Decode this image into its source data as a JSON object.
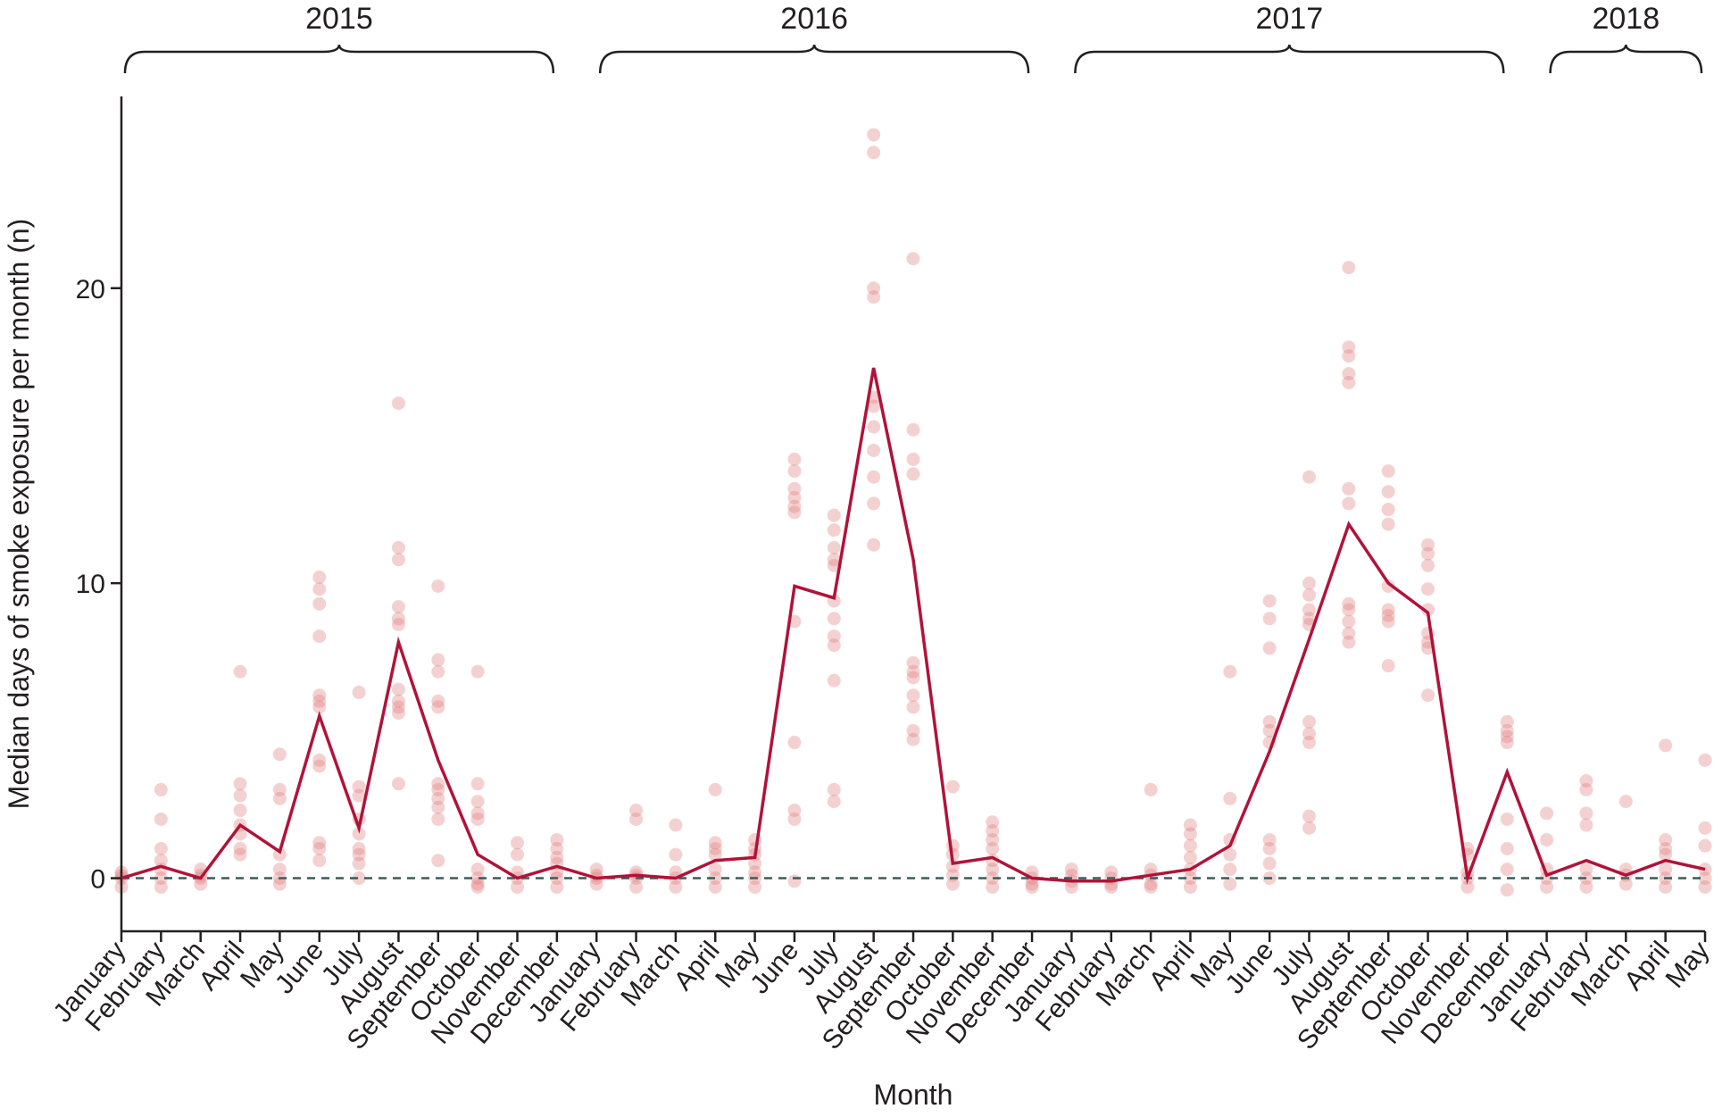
{
  "chart_data": {
    "type": "line",
    "title": "",
    "xlabel": "Month",
    "ylabel": "Median days of smoke exposure per month (n)",
    "ylim": [
      -1.8,
      26.5
    ],
    "yticks": [
      0,
      10,
      20
    ],
    "years": [
      {
        "label": "2015",
        "start": 0,
        "end": 11
      },
      {
        "label": "2016",
        "start": 12,
        "end": 23
      },
      {
        "label": "2017",
        "start": 24,
        "end": 35
      },
      {
        "label": "2018",
        "start": 36,
        "end": 40
      }
    ],
    "categories": [
      "January",
      "February",
      "March",
      "April",
      "May",
      "June",
      "July",
      "August",
      "September",
      "October",
      "November",
      "December",
      "January",
      "February",
      "March",
      "April",
      "May",
      "June",
      "July",
      "August",
      "September",
      "October",
      "November",
      "December",
      "January",
      "February",
      "March",
      "April",
      "May",
      "June",
      "July",
      "August",
      "September",
      "October",
      "November",
      "December",
      "January",
      "February",
      "March",
      "April",
      "May"
    ],
    "reference_line": {
      "y": 0,
      "style": "dashed",
      "color": "#3d5a5a"
    },
    "series": [
      {
        "color": "#b0133a",
        "values": [
          0,
          0.4,
          0,
          1.8,
          0.9,
          5.5,
          1.7,
          8.0,
          4.0,
          0.8,
          0,
          0.4,
          0,
          0.1,
          0,
          0.6,
          0.7,
          9.9,
          9.5,
          17.3,
          10.8,
          0.5,
          0.7,
          0,
          -0.1,
          -0.1,
          0.1,
          0.3,
          1.1,
          4.3,
          8.1,
          12.0,
          10.0,
          9.0,
          0,
          3.6,
          0.1,
          0.6,
          0.1,
          0.6,
          0.3
        ]
      }
    ],
    "scatter": {
      "color": "#e07b7b",
      "points": [
        [
          0,
          0
        ],
        [
          0,
          -0.3
        ],
        [
          0,
          0.2
        ],
        [
          0,
          0.1
        ],
        [
          1,
          3.0
        ],
        [
          1,
          2.0
        ],
        [
          1,
          1.0
        ],
        [
          1,
          0.6
        ],
        [
          1,
          0.3
        ],
        [
          1,
          0
        ],
        [
          1,
          -0.3
        ],
        [
          2,
          0.3
        ],
        [
          2,
          0
        ],
        [
          2,
          -0.2
        ],
        [
          2,
          0.1
        ],
        [
          3,
          7.0
        ],
        [
          3,
          3.2
        ],
        [
          3,
          2.8
        ],
        [
          3,
          2.3
        ],
        [
          3,
          1.8
        ],
        [
          3,
          1.5
        ],
        [
          3,
          1.0
        ],
        [
          3,
          0.8
        ],
        [
          4,
          4.2
        ],
        [
          4,
          3.0
        ],
        [
          4,
          2.7
        ],
        [
          4,
          0.8
        ],
        [
          4,
          0.3
        ],
        [
          4,
          0
        ],
        [
          4,
          -0.2
        ],
        [
          5,
          10.2
        ],
        [
          5,
          9.8
        ],
        [
          5,
          9.3
        ],
        [
          5,
          8.2
        ],
        [
          5,
          6.2
        ],
        [
          5,
          6.0
        ],
        [
          5,
          5.8
        ],
        [
          5,
          4.0
        ],
        [
          5,
          3.8
        ],
        [
          5,
          1.2
        ],
        [
          5,
          1.0
        ],
        [
          5,
          0.6
        ],
        [
          6,
          6.3
        ],
        [
          6,
          3.1
        ],
        [
          6,
          2.8
        ],
        [
          6,
          2.0
        ],
        [
          6,
          1.5
        ],
        [
          6,
          1.0
        ],
        [
          6,
          0.8
        ],
        [
          6,
          0.5
        ],
        [
          6,
          0
        ],
        [
          7,
          16.1
        ],
        [
          7,
          11.2
        ],
        [
          7,
          10.8
        ],
        [
          7,
          9.2
        ],
        [
          7,
          8.8
        ],
        [
          7,
          8.6
        ],
        [
          7,
          6.4
        ],
        [
          7,
          6.0
        ],
        [
          7,
          5.8
        ],
        [
          7,
          5.6
        ],
        [
          7,
          3.2
        ],
        [
          8,
          9.9
        ],
        [
          8,
          7.4
        ],
        [
          8,
          7.0
        ],
        [
          8,
          6.0
        ],
        [
          8,
          5.8
        ],
        [
          8,
          3.2
        ],
        [
          8,
          3.0
        ],
        [
          8,
          2.7
        ],
        [
          8,
          2.4
        ],
        [
          8,
          2.0
        ],
        [
          8,
          0.6
        ],
        [
          9,
          7.0
        ],
        [
          9,
          3.2
        ],
        [
          9,
          2.6
        ],
        [
          9,
          2.2
        ],
        [
          9,
          2.0
        ],
        [
          9,
          0.3
        ],
        [
          9,
          0
        ],
        [
          9,
          -0.2
        ],
        [
          9,
          -0.3
        ],
        [
          10,
          1.2
        ],
        [
          10,
          0.8
        ],
        [
          10,
          0.2
        ],
        [
          10,
          0
        ],
        [
          10,
          -0.3
        ],
        [
          11,
          1.3
        ],
        [
          11,
          1.0
        ],
        [
          11,
          0.7
        ],
        [
          11,
          0.5
        ],
        [
          11,
          0.2
        ],
        [
          11,
          0
        ],
        [
          11,
          -0.3
        ],
        [
          12,
          0.3
        ],
        [
          12,
          0
        ],
        [
          12,
          -0.2
        ],
        [
          12,
          0.1
        ],
        [
          13,
          2.3
        ],
        [
          13,
          2.0
        ],
        [
          13,
          0.2
        ],
        [
          13,
          0
        ],
        [
          13,
          -0.3
        ],
        [
          13,
          0.1
        ],
        [
          14,
          1.8
        ],
        [
          14,
          0.8
        ],
        [
          14,
          0.2
        ],
        [
          14,
          0
        ],
        [
          14,
          -0.3
        ],
        [
          15,
          3.0
        ],
        [
          15,
          1.2
        ],
        [
          15,
          1.0
        ],
        [
          15,
          0.8
        ],
        [
          15,
          0.3
        ],
        [
          15,
          0
        ],
        [
          15,
          -0.3
        ],
        [
          16,
          1.3
        ],
        [
          16,
          1.0
        ],
        [
          16,
          0.8
        ],
        [
          16,
          0.5
        ],
        [
          16,
          0.2
        ],
        [
          16,
          0
        ],
        [
          16,
          -0.3
        ],
        [
          17,
          14.2
        ],
        [
          17,
          13.8
        ],
        [
          17,
          13.2
        ],
        [
          17,
          12.9
        ],
        [
          17,
          12.6
        ],
        [
          17,
          12.4
        ],
        [
          17,
          8.7
        ],
        [
          17,
          4.6
        ],
        [
          17,
          2.3
        ],
        [
          17,
          2.0
        ],
        [
          17,
          -0.1
        ],
        [
          18,
          12.3
        ],
        [
          18,
          11.8
        ],
        [
          18,
          11.2
        ],
        [
          18,
          10.8
        ],
        [
          18,
          10.6
        ],
        [
          18,
          9.4
        ],
        [
          18,
          8.8
        ],
        [
          18,
          8.2
        ],
        [
          18,
          7.9
        ],
        [
          18,
          6.7
        ],
        [
          18,
          3.0
        ],
        [
          18,
          2.6
        ],
        [
          19,
          25.2
        ],
        [
          19,
          24.6
        ],
        [
          19,
          20.0
        ],
        [
          19,
          19.7
        ],
        [
          19,
          16.3
        ],
        [
          19,
          16.0
        ],
        [
          19,
          15.3
        ],
        [
          19,
          14.5
        ],
        [
          19,
          13.6
        ],
        [
          19,
          12.7
        ],
        [
          19,
          11.3
        ],
        [
          20,
          21.0
        ],
        [
          20,
          15.2
        ],
        [
          20,
          14.2
        ],
        [
          20,
          13.7
        ],
        [
          20,
          7.3
        ],
        [
          20,
          7.0
        ],
        [
          20,
          6.8
        ],
        [
          20,
          6.2
        ],
        [
          20,
          5.8
        ],
        [
          20,
          5.0
        ],
        [
          20,
          4.7
        ],
        [
          21,
          3.1
        ],
        [
          21,
          1.1
        ],
        [
          21,
          0.8
        ],
        [
          21,
          0.4
        ],
        [
          21,
          0.1
        ],
        [
          21,
          -0.2
        ],
        [
          22,
          1.9
        ],
        [
          22,
          1.6
        ],
        [
          22,
          1.3
        ],
        [
          22,
          1.0
        ],
        [
          22,
          0.6
        ],
        [
          22,
          0.3
        ],
        [
          22,
          0
        ],
        [
          22,
          -0.3
        ],
        [
          23,
          0.2
        ],
        [
          23,
          0
        ],
        [
          23,
          -0.2
        ],
        [
          23,
          -0.3
        ],
        [
          24,
          0.3
        ],
        [
          24,
          0.1
        ],
        [
          24,
          -0.1
        ],
        [
          24,
          -0.3
        ],
        [
          25,
          0.2
        ],
        [
          25,
          0
        ],
        [
          25,
          -0.2
        ],
        [
          25,
          -0.3
        ],
        [
          26,
          3.0
        ],
        [
          26,
          0.3
        ],
        [
          26,
          0.1
        ],
        [
          26,
          -0.2
        ],
        [
          26,
          -0.3
        ],
        [
          27,
          1.8
        ],
        [
          27,
          1.5
        ],
        [
          27,
          1.1
        ],
        [
          27,
          0.7
        ],
        [
          27,
          0.3
        ],
        [
          27,
          0
        ],
        [
          27,
          -0.3
        ],
        [
          28,
          7.0
        ],
        [
          28,
          2.7
        ],
        [
          28,
          1.3
        ],
        [
          28,
          0.8
        ],
        [
          28,
          0.3
        ],
        [
          28,
          -0.2
        ],
        [
          29,
          9.4
        ],
        [
          29,
          8.8
        ],
        [
          29,
          7.8
        ],
        [
          29,
          5.3
        ],
        [
          29,
          5.0
        ],
        [
          29,
          4.6
        ],
        [
          29,
          1.3
        ],
        [
          29,
          1.0
        ],
        [
          29,
          0.5
        ],
        [
          29,
          0
        ],
        [
          30,
          13.6
        ],
        [
          30,
          10.0
        ],
        [
          30,
          9.6
        ],
        [
          30,
          9.1
        ],
        [
          30,
          8.8
        ],
        [
          30,
          8.6
        ],
        [
          30,
          5.3
        ],
        [
          30,
          4.9
        ],
        [
          30,
          4.6
        ],
        [
          30,
          2.1
        ],
        [
          30,
          1.7
        ],
        [
          31,
          20.7
        ],
        [
          31,
          18.0
        ],
        [
          31,
          17.7
        ],
        [
          31,
          17.1
        ],
        [
          31,
          16.8
        ],
        [
          31,
          13.2
        ],
        [
          31,
          12.7
        ],
        [
          31,
          9.3
        ],
        [
          31,
          9.1
        ],
        [
          31,
          8.7
        ],
        [
          31,
          8.3
        ],
        [
          31,
          8.0
        ],
        [
          32,
          13.8
        ],
        [
          32,
          13.1
        ],
        [
          32,
          12.5
        ],
        [
          32,
          12.0
        ],
        [
          32,
          9.9
        ],
        [
          32,
          9.1
        ],
        [
          32,
          8.9
        ],
        [
          32,
          8.7
        ],
        [
          32,
          7.2
        ],
        [
          33,
          11.3
        ],
        [
          33,
          11.0
        ],
        [
          33,
          10.6
        ],
        [
          33,
          9.8
        ],
        [
          33,
          9.1
        ],
        [
          33,
          8.3
        ],
        [
          33,
          8.0
        ],
        [
          33,
          7.8
        ],
        [
          33,
          6.2
        ],
        [
          34,
          1.0
        ],
        [
          34,
          0.8
        ],
        [
          34,
          0.2
        ],
        [
          34,
          0
        ],
        [
          34,
          -0.3
        ],
        [
          35,
          5.3
        ],
        [
          35,
          5.0
        ],
        [
          35,
          4.8
        ],
        [
          35,
          4.6
        ],
        [
          35,
          2.0
        ],
        [
          35,
          1.0
        ],
        [
          35,
          0.3
        ],
        [
          35,
          -0.4
        ],
        [
          36,
          2.2
        ],
        [
          36,
          1.3
        ],
        [
          36,
          0.3
        ],
        [
          36,
          0
        ],
        [
          36,
          -0.3
        ],
        [
          37,
          3.3
        ],
        [
          37,
          3.0
        ],
        [
          37,
          2.2
        ],
        [
          37,
          1.8
        ],
        [
          37,
          0.3
        ],
        [
          37,
          0
        ],
        [
          37,
          -0.3
        ],
        [
          38,
          2.6
        ],
        [
          38,
          0.3
        ],
        [
          38,
          0.1
        ],
        [
          38,
          -0.2
        ],
        [
          39,
          4.5
        ],
        [
          39,
          1.3
        ],
        [
          39,
          1.0
        ],
        [
          39,
          0.8
        ],
        [
          39,
          0.3
        ],
        [
          39,
          0
        ],
        [
          39,
          -0.3
        ],
        [
          40,
          4.0
        ],
        [
          40,
          1.7
        ],
        [
          40,
          1.1
        ],
        [
          40,
          0.3
        ],
        [
          40,
          0
        ],
        [
          40,
          -0.3
        ]
      ]
    }
  }
}
